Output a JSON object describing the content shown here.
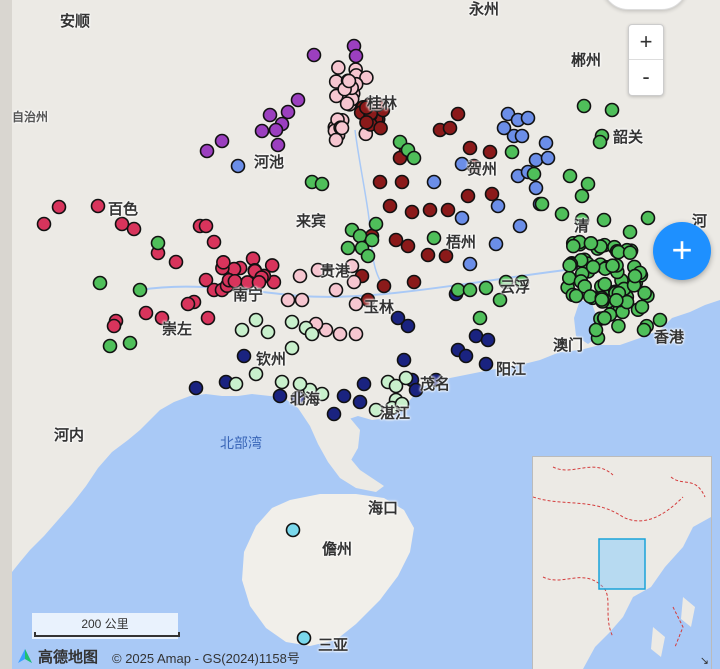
{
  "map": {
    "place_labels": [
      {
        "id": "anshun",
        "text": "安顺"
      },
      {
        "id": "yongzhou",
        "text": "永州"
      },
      {
        "id": "chenzhou",
        "text": "郴州"
      },
      {
        "id": "zizhizhou",
        "text": "自治州"
      },
      {
        "id": "guilin",
        "text": "桂林"
      },
      {
        "id": "shaoguan",
        "text": "韶关"
      },
      {
        "id": "hechi",
        "text": "河池"
      },
      {
        "id": "hezhou",
        "text": "贺州"
      },
      {
        "id": "baise",
        "text": "百色"
      },
      {
        "id": "laibin",
        "text": "来宾"
      },
      {
        "id": "heyuan",
        "text": "河"
      },
      {
        "id": "wuzhou",
        "text": "梧州"
      },
      {
        "id": "qingyuan",
        "text": "清"
      },
      {
        "id": "guigang",
        "text": "贵港"
      },
      {
        "id": "yunfu",
        "text": "云浮"
      },
      {
        "id": "nanning",
        "text": "南宁"
      },
      {
        "id": "yulin",
        "text": "玉林"
      },
      {
        "id": "chongzuo",
        "text": "崇左"
      },
      {
        "id": "macau",
        "text": "澳门"
      },
      {
        "id": "hongkong",
        "text": "香港"
      },
      {
        "id": "qinzhou",
        "text": "钦州"
      },
      {
        "id": "yangjiang",
        "text": "阳江"
      },
      {
        "id": "maoming",
        "text": "茂名"
      },
      {
        "id": "beihai",
        "text": "北海"
      },
      {
        "id": "zhanjiang",
        "text": "湛江"
      },
      {
        "id": "hanoi",
        "text": "河内"
      },
      {
        "id": "beibuwan",
        "text": "北部湾"
      },
      {
        "id": "haikou",
        "text": "海口"
      },
      {
        "id": "danzhou",
        "text": "儋州"
      },
      {
        "id": "sanya",
        "text": "三亚"
      }
    ],
    "zoom_in_label": "+",
    "zoom_out_label": "-",
    "fab_label": "+",
    "scale_label": "200 公里",
    "logo_text": "高德地图",
    "copyright": "© 2025 Amap - GS(2024)1158号",
    "overview_toggle": "↘",
    "colors": {
      "sea": "#a9c9f6",
      "land": "#eceae5",
      "island": "#f1efea",
      "purple": "#9b3fbf",
      "light_pink": "#f6c6d0",
      "dark_red": "#8b1a1a",
      "crimson": "#d8345c",
      "blue_light": "#6b8ee8",
      "navy": "#1a2380",
      "green": "#4fbf5a",
      "pale_green": "#c8f0cc",
      "cyan": "#7ad8ec",
      "fab": "#1e90ff"
    }
  }
}
